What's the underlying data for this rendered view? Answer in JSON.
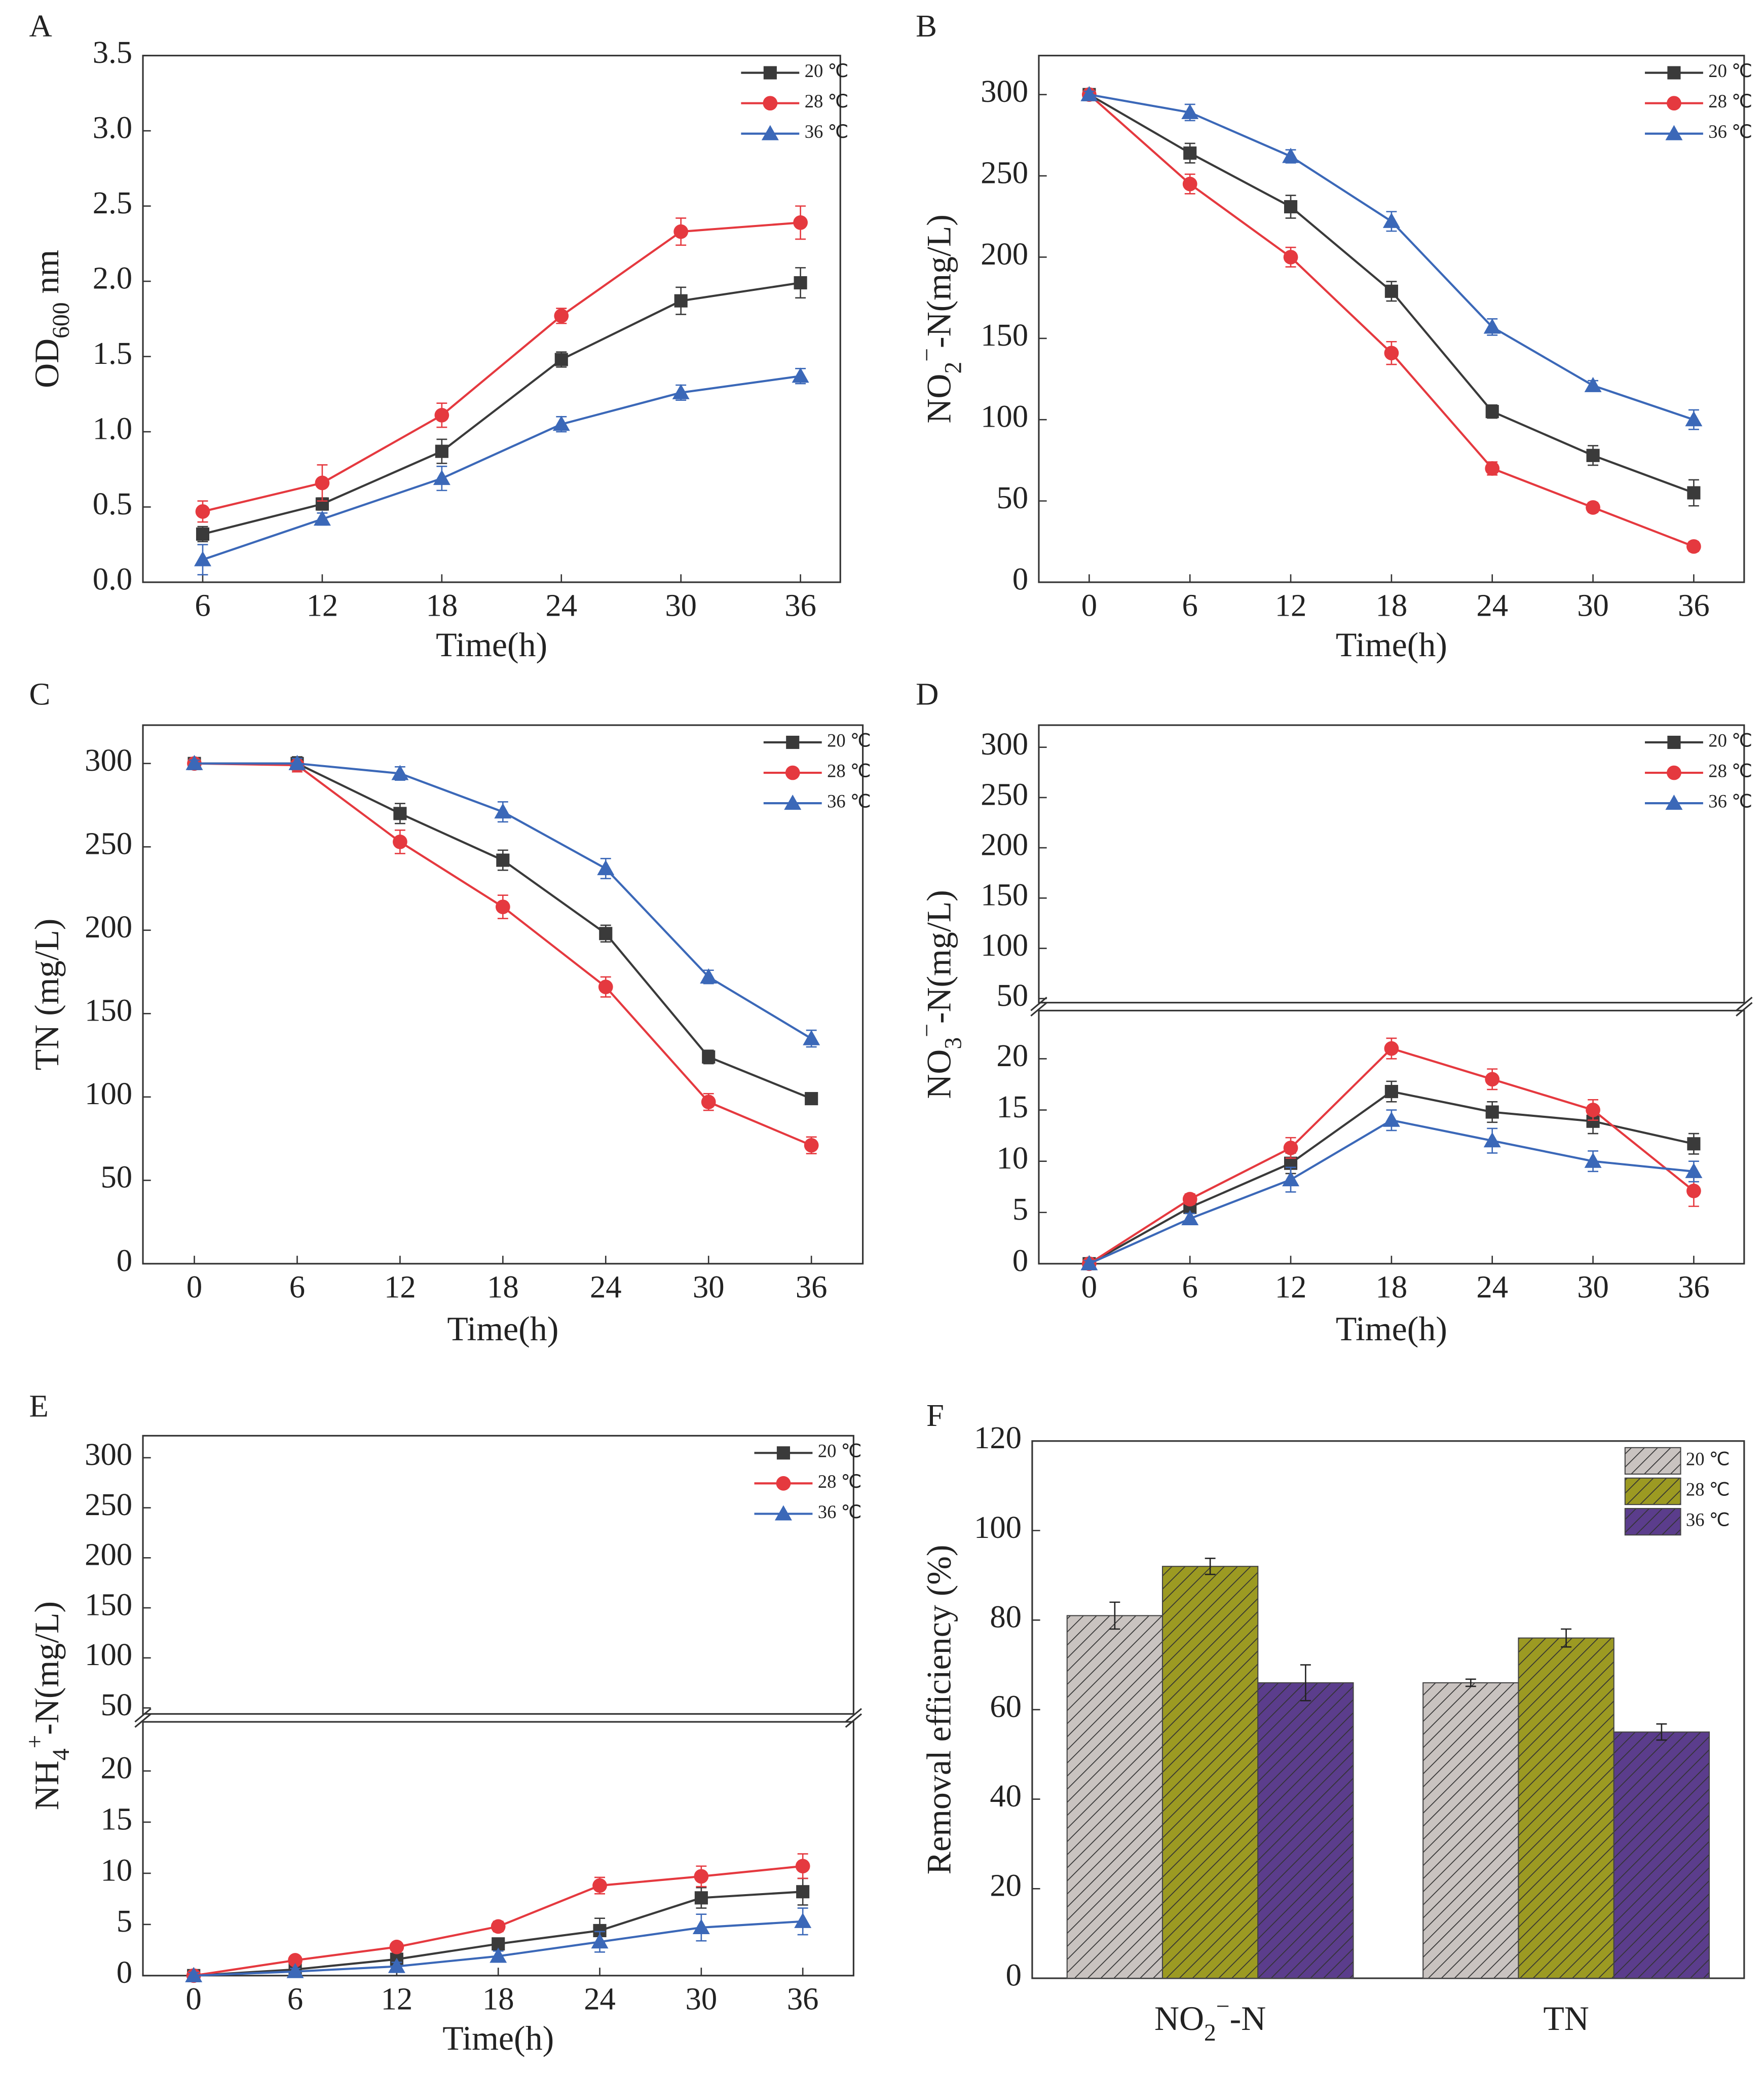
{
  "chart_data": [
    {
      "type": "line",
      "panel": "A",
      "x": [
        6,
        12,
        18,
        24,
        30,
        36
      ],
      "xlim": [
        3,
        38
      ],
      "xticks": [
        6,
        12,
        18,
        24,
        30,
        36
      ],
      "xlabel": "Time(h)",
      "ylabel": [
        "OD",
        "600",
        " nm"
      ],
      "ylim": [
        0,
        3.5
      ],
      "yticks": [
        {
          "value": 0,
          "label": "0.0"
        },
        0.5,
        {
          "value": 1,
          "label": "1.0"
        },
        1.5,
        {
          "value": 2,
          "label": "2.0"
        },
        2.5,
        {
          "value": 3,
          "label": "3.0"
        },
        3.5
      ],
      "legend": "upper right",
      "series": [
        {
          "name": "20 ℃",
          "color": "#3a3a3a",
          "marker": "square",
          "values": [
            0.32,
            0.52,
            0.87,
            1.48,
            1.87,
            1.99
          ],
          "errors": [
            0.05,
            0.04,
            0.08,
            0.05,
            0.09,
            0.1
          ]
        },
        {
          "name": "28 ℃",
          "color": "#e5393f",
          "marker": "circle",
          "values": [
            0.47,
            0.66,
            1.11,
            1.77,
            2.33,
            2.39
          ],
          "errors": [
            0.07,
            0.12,
            0.08,
            0.05,
            0.09,
            0.11
          ]
        },
        {
          "name": "36 ℃",
          "color": "#3b68b8",
          "marker": "triangle",
          "values": [
            0.15,
            0.42,
            0.69,
            1.05,
            1.26,
            1.37
          ],
          "errors": [
            0.1,
            0.04,
            0.08,
            0.05,
            0.05,
            0.05
          ]
        }
      ]
    },
    {
      "type": "line",
      "panel": "B",
      "x": [
        0,
        6,
        12,
        18,
        24,
        30,
        36
      ],
      "xlim": [
        -3,
        39
      ],
      "xticks": [
        0,
        6,
        12,
        18,
        24,
        30,
        36
      ],
      "xlabel": "Time(h)",
      "ylabel": [
        "NO",
        "2",
        "−",
        "-N(mg/L)"
      ],
      "ylim": [
        0,
        324
      ],
      "yticks": [
        0,
        50,
        100,
        150,
        200,
        250,
        300
      ],
      "legend": "upper right",
      "series": [
        {
          "name": "20 ℃",
          "color": "#3a3a3a",
          "marker": "square",
          "values": [
            300,
            264,
            231,
            179,
            105,
            78,
            55
          ],
          "errors": [
            2,
            6,
            7,
            6,
            4,
            6,
            8
          ]
        },
        {
          "name": "28 ℃",
          "color": "#e5393f",
          "marker": "circle",
          "values": [
            300,
            245,
            200,
            141,
            70,
            46,
            22
          ],
          "errors": [
            2,
            6,
            6,
            7,
            4,
            3,
            3
          ]
        },
        {
          "name": "36 ℃",
          "color": "#3b68b8",
          "marker": "triangle",
          "values": [
            300,
            289,
            262,
            222,
            157,
            121,
            100
          ],
          "errors": [
            2,
            5,
            4,
            6,
            5,
            3,
            6
          ]
        }
      ]
    },
    {
      "type": "line",
      "panel": "C",
      "x": [
        0,
        6,
        12,
        18,
        24,
        30,
        36
      ],
      "xlim": [
        -3,
        39
      ],
      "xticks": [
        0,
        6,
        12,
        18,
        24,
        30,
        36
      ],
      "xlabel": "Time(h)",
      "ylabel": [
        "TN (mg/L)"
      ],
      "ylim": [
        0,
        323
      ],
      "yticks": [
        0,
        50,
        100,
        150,
        200,
        250,
        300
      ],
      "legend": "upper right",
      "series": [
        {
          "name": "20 ℃",
          "color": "#3a3a3a",
          "marker": "square",
          "values": [
            300,
            300,
            270,
            242,
            198,
            124,
            99
          ],
          "errors": [
            2,
            4,
            6,
            6,
            5,
            4,
            3
          ]
        },
        {
          "name": "28 ℃",
          "color": "#e5393f",
          "marker": "circle",
          "values": [
            300,
            299,
            253,
            214,
            166,
            97,
            71
          ],
          "errors": [
            2,
            4,
            7,
            7,
            6,
            5,
            5
          ]
        },
        {
          "name": "36 ℃",
          "color": "#3b68b8",
          "marker": "triangle",
          "values": [
            300,
            300,
            294,
            271,
            237,
            172,
            135
          ],
          "errors": [
            2,
            3,
            4,
            6,
            6,
            4,
            5
          ]
        }
      ]
    },
    {
      "type": "line",
      "panel": "D",
      "x": [
        0,
        6,
        12,
        18,
        24,
        30,
        36
      ],
      "xlim": [
        -3,
        39
      ],
      "xticks": [
        0,
        6,
        12,
        18,
        24,
        30,
        36
      ],
      "xlabel": "Time(h)",
      "ylabel": [
        "NO",
        "3",
        "−",
        "-N(mg/L)"
      ],
      "ylim": [
        0,
        24.7
      ],
      "yticks": [
        0,
        5,
        10,
        15,
        20
      ],
      "ylim_upper": [
        46,
        322
      ],
      "yticks_upper": [
        50,
        100,
        150,
        200,
        250,
        300
      ],
      "legend": "upper right",
      "series": [
        {
          "name": "20 ℃",
          "color": "#3a3a3a",
          "marker": "square",
          "values": [
            0,
            5.5,
            9.8,
            16.8,
            14.8,
            13.9,
            11.7
          ],
          "errors": [
            0.3,
            0.6,
            1,
            1,
            1,
            1.2,
            1
          ]
        },
        {
          "name": "28 ℃",
          "color": "#e5393f",
          "marker": "circle",
          "values": [
            0,
            6.3,
            11.3,
            21,
            18,
            15,
            7.1
          ],
          "errors": [
            0.3,
            0.5,
            1,
            1,
            1,
            1,
            1.5
          ]
        },
        {
          "name": "36 ℃",
          "color": "#3b68b8",
          "marker": "triangle",
          "values": [
            0,
            4.4,
            8.2,
            14,
            12,
            10,
            9
          ],
          "errors": [
            0.3,
            0.5,
            1.2,
            1,
            1.2,
            1,
            1
          ]
        }
      ]
    },
    {
      "type": "line",
      "panel": "E",
      "x": [
        0,
        6,
        12,
        18,
        24,
        30,
        36
      ],
      "xlim": [
        -3,
        39
      ],
      "xticks": [
        0,
        6,
        12,
        18,
        24,
        30,
        36
      ],
      "xlabel": "Time(h)",
      "ylabel": [
        "NH",
        "4",
        "+",
        "-N(mg/L)"
      ],
      "ylim": [
        0,
        24.8
      ],
      "yticks": [
        0,
        5,
        10,
        15,
        20
      ],
      "ylim_upper": [
        44,
        322
      ],
      "yticks_upper": [
        50,
        100,
        150,
        200,
        250,
        300
      ],
      "legend": "upper right",
      "series": [
        {
          "name": "20 ℃",
          "color": "#3a3a3a",
          "marker": "square",
          "values": [
            0,
            0.6,
            1.6,
            3.1,
            4.4,
            7.6,
            8.2
          ],
          "errors": [
            0.3,
            0.4,
            0.5,
            0.5,
            1.2,
            1,
            1.3
          ]
        },
        {
          "name": "28 ℃",
          "color": "#e5393f",
          "marker": "circle",
          "values": [
            0,
            1.5,
            2.8,
            4.8,
            8.8,
            9.7,
            10.7
          ],
          "errors": [
            0.3,
            0.4,
            0.4,
            0.5,
            0.8,
            1,
            1.2
          ]
        },
        {
          "name": "36 ℃",
          "color": "#3b68b8",
          "marker": "triangle",
          "values": [
            0,
            0.4,
            0.9,
            1.9,
            3.3,
            4.7,
            5.3
          ],
          "errors": [
            0.3,
            0.3,
            0.4,
            0.5,
            1,
            1.3,
            1.3
          ]
        }
      ]
    },
    {
      "type": "bar",
      "panel": "F",
      "categories": [
        [
          "NO",
          "2",
          "−",
          "-N"
        ],
        [
          "TN"
        ]
      ],
      "ylabel": [
        "Removal efficiency (%)"
      ],
      "ylim": [
        0,
        120
      ],
      "yticks": [
        0,
        20,
        40,
        60,
        80,
        100,
        120
      ],
      "legend": "upper right",
      "hatch": true,
      "series": [
        {
          "name": "20 ℃",
          "color": "#c9c3c0",
          "values": [
            81,
            66
          ],
          "errors": [
            3,
            0.8
          ]
        },
        {
          "name": "28 ℃",
          "color": "#9c9a22",
          "values": [
            92,
            76
          ],
          "errors": [
            1.8,
            2
          ]
        },
        {
          "name": "36 ℃",
          "color": "#5b3d8c",
          "values": [
            66,
            55
          ],
          "errors": [
            4,
            1.8
          ]
        }
      ]
    }
  ]
}
